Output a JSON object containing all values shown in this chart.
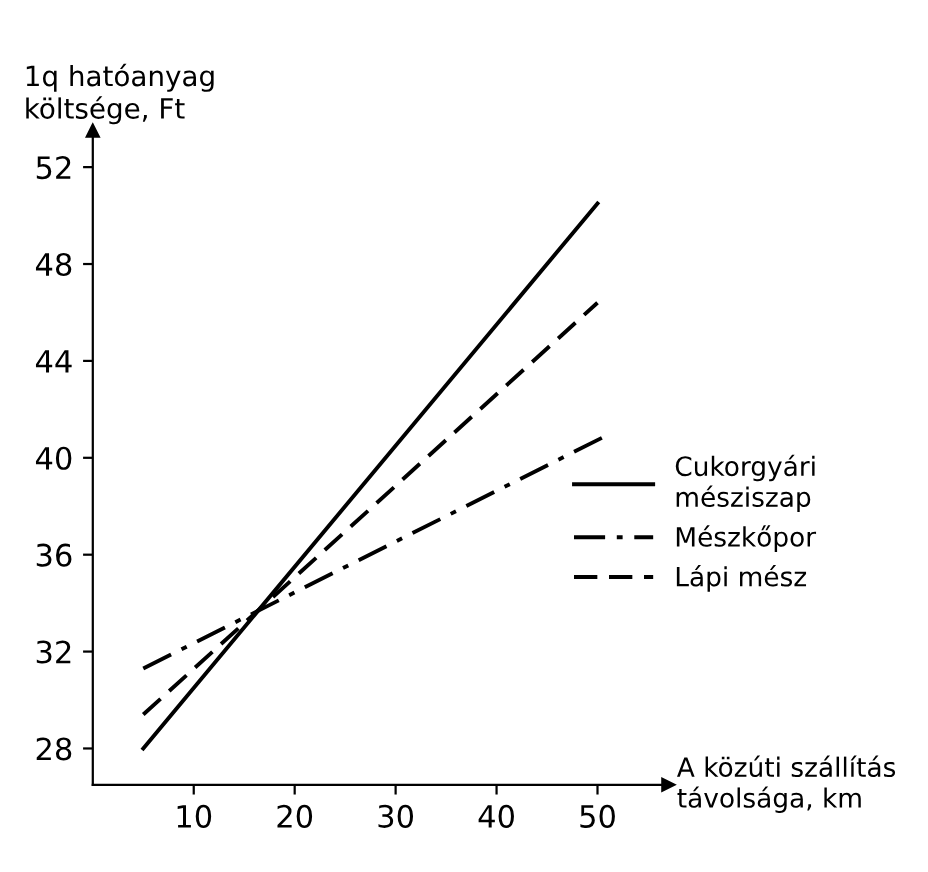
{
  "chart_data": {
    "type": "line",
    "xlabel": "A közúti szállítás\ntávolsága, km",
    "ylabel": "1q hatóanyag\nköltsége, Ft",
    "x": [
      5,
      50
    ],
    "series": [
      {
        "name": "Cukorgyári\nmésziszap",
        "color": "#000000",
        "line_style": "solid",
        "values": [
          28.0,
          50.5
        ]
      },
      {
        "name": "Mészkőpor",
        "color": "#000000",
        "line_style": "dashdot",
        "x": [
          5,
          50.8
        ],
        "values": [
          31.3,
          40.9
        ]
      },
      {
        "name": "Lápi mész",
        "color": "#000000",
        "line_style": "dashed",
        "values": [
          29.4,
          46.4
        ]
      }
    ],
    "xlim": [
      0,
      57
    ],
    "ylim": [
      26.5,
      53.5
    ],
    "xticks": [
      10,
      20,
      30,
      40,
      50
    ],
    "yticks": [
      28,
      32,
      36,
      40,
      44,
      48,
      52
    ],
    "grid": false,
    "legend": "right",
    "marker": "none"
  }
}
